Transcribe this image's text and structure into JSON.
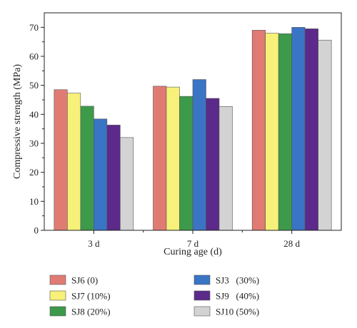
{
  "chart_data": {
    "type": "bar",
    "xlabel": "Curing age (d)",
    "ylabel": "Compressive strength (MPa)",
    "ylim": [
      0,
      75
    ],
    "yticks": [
      0,
      10,
      20,
      30,
      40,
      50,
      60,
      70
    ],
    "categories": [
      "3 d",
      "7 d",
      "28 d"
    ],
    "grid": false,
    "legend_position": "bottom",
    "series": [
      {
        "name": "SJ6 (0)",
        "color": "#e07b73",
        "values": [
          48.5,
          49.7,
          69.0
        ]
      },
      {
        "name": "SJ7 (10%)",
        "color": "#f7f17a",
        "values": [
          47.3,
          49.4,
          68.0
        ]
      },
      {
        "name": "SJ8 (20%)",
        "color": "#3c9a4a",
        "values": [
          42.8,
          46.2,
          67.8
        ]
      },
      {
        "name": "SJ3   (30%)",
        "color": "#3a74c4",
        "values": [
          38.4,
          52.0,
          70.0
        ]
      },
      {
        "name": "SJ9   (40%)",
        "color": "#5b2a8a",
        "values": [
          36.3,
          45.5,
          69.5
        ]
      },
      {
        "name": "SJ10 (50%)",
        "color": "#d3d3d3",
        "values": [
          32.0,
          42.7,
          65.6
        ]
      }
    ]
  }
}
